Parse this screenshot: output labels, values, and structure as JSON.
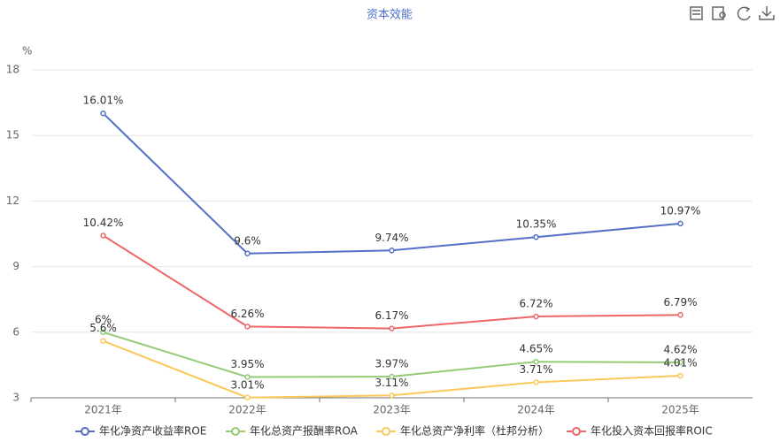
{
  "chart_data": {
    "type": "line",
    "title": "资本效能",
    "y_unit": "%",
    "categories": [
      "2021年",
      "2022年",
      "2023年",
      "2024年",
      "2025年"
    ],
    "ylim": [
      3,
      18
    ],
    "yticks": [
      3,
      6,
      9,
      12,
      15,
      18
    ],
    "grid": true,
    "legend": "bottom",
    "series": [
      {
        "name": "年化净资产收益率ROE",
        "color": "#5470c6",
        "values": [
          16.01,
          9.6,
          9.74,
          10.35,
          10.97
        ],
        "value_labels": [
          "16.01%",
          "9.6%",
          "9.74%",
          "10.35%",
          "10.97%"
        ]
      },
      {
        "name": "年化总资产报酬率ROA",
        "color": "#91cc75",
        "values": [
          6,
          3.95,
          3.97,
          4.65,
          4.62
        ],
        "value_labels": [
          "6%",
          "3.95%",
          "3.97%",
          "4.65%",
          "4.62%"
        ]
      },
      {
        "name": "年化总资产净利率（杜邦分析）",
        "color": "#fac858",
        "values": [
          5.6,
          3.01,
          3.11,
          3.71,
          4.01
        ],
        "value_labels": [
          "5.6%",
          "3.01%",
          "3.11%",
          "3.71%",
          "4.01%"
        ]
      },
      {
        "name": "年化投入资本回报率ROIC",
        "color": "#ee6666",
        "values": [
          10.42,
          6.26,
          6.17,
          6.72,
          6.79
        ],
        "value_labels": [
          "10.42%",
          "6.26%",
          "6.17%",
          "6.72%",
          "6.79%"
        ]
      }
    ]
  }
}
